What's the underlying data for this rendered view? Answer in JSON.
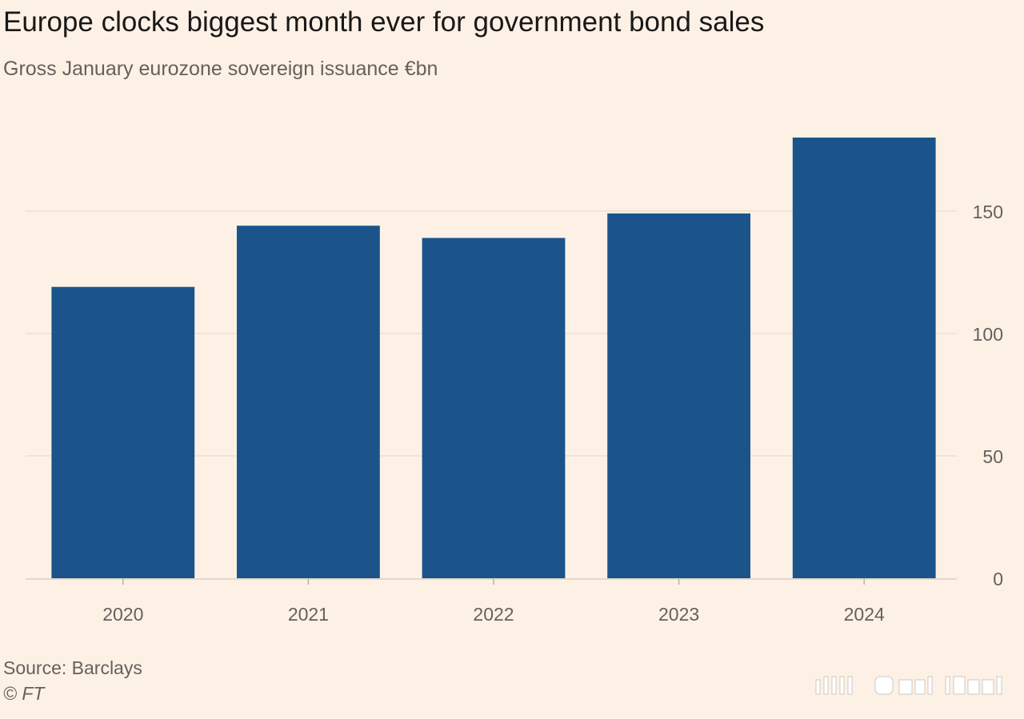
{
  "header": {
    "title": "Europe clocks biggest month ever for government bond sales",
    "subtitle": "Gross January eurozone sovereign issuance €bn"
  },
  "footer": {
    "source": "Source: Barclays",
    "copyright": "© FT"
  },
  "colors": {
    "background": "#fdf1e6",
    "bar": "#1a548b",
    "grid": "#ecdfd3",
    "axis_text": "#66605c"
  },
  "chart_data": {
    "type": "bar",
    "title": "Europe clocks biggest month ever for government bond sales",
    "subtitle": "Gross January eurozone sovereign issuance €bn",
    "categories": [
      "2020",
      "2021",
      "2022",
      "2023",
      "2024"
    ],
    "values": [
      119,
      144,
      139,
      149,
      180
    ],
    "xlabel": "",
    "ylabel": "€bn",
    "ylim": [
      0,
      180
    ],
    "yticks": [
      0,
      50,
      100,
      150
    ],
    "y_axis_side": "right",
    "grid": true,
    "legend": "none"
  }
}
